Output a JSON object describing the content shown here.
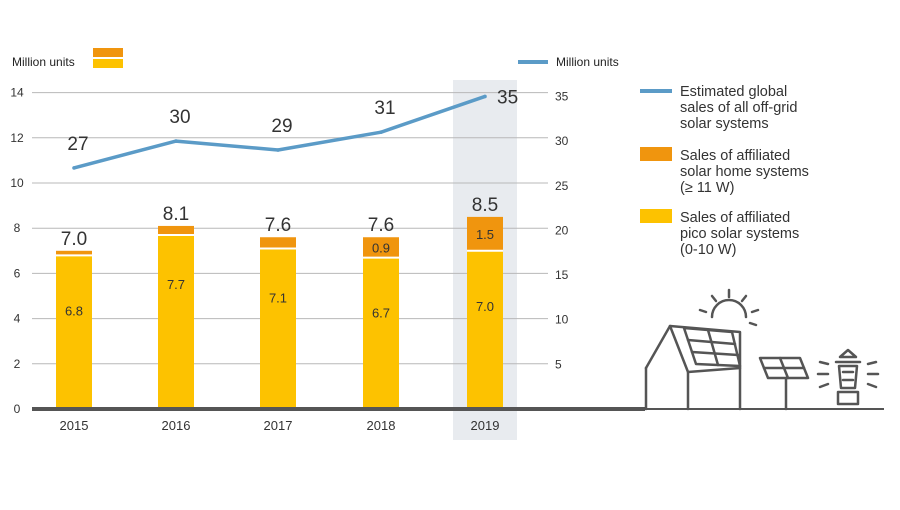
{
  "colors": {
    "pico": "#FDC200",
    "shs": "#F0950E",
    "line": "#5B9BC7",
    "highlight": "#E8EBEF",
    "axis": "#555555",
    "icon": "#555555"
  },
  "chart_data": {
    "type": "bar",
    "stacked": true,
    "categories": [
      "2015",
      "2016",
      "2017",
      "2018",
      "2019"
    ],
    "highlight_category": "2019",
    "left_axis": {
      "label": "Million units",
      "range": [
        0,
        14
      ],
      "ticks": [
        "0",
        "2",
        "4",
        "6",
        "8",
        "10",
        "12",
        "14"
      ]
    },
    "right_axis": {
      "label": "Million units",
      "range": [
        0,
        35
      ],
      "ticks": [
        "5",
        "10",
        "15",
        "20",
        "25",
        "30",
        "35"
      ]
    },
    "series": [
      {
        "name": "Sales of affiliated pico solar systems (0-10 W)",
        "type": "bar",
        "values": [
          6.8,
          7.7,
          7.1,
          6.7,
          7.0
        ],
        "labels": [
          "6.8",
          "7.7",
          "7.1",
          "6.7",
          "7.0"
        ]
      },
      {
        "name": "Sales of affiliated solar home systems (≥ 11 W)",
        "type": "bar",
        "values": [
          0.2,
          0.4,
          0.5,
          0.9,
          1.5
        ],
        "labels": [
          "",
          "",
          "",
          "0.9",
          "1.5"
        ]
      },
      {
        "name": "Estimated global sales of all off-grid solar systems",
        "type": "line",
        "axis": "right",
        "values": [
          27,
          30,
          29,
          31,
          35
        ],
        "labels": [
          "27",
          "30",
          "29",
          "31",
          "35"
        ]
      }
    ],
    "totals": [
      "7.0",
      "8.1",
      "7.6",
      "7.6",
      "8.5"
    ],
    "legend": [
      {
        "key": "line",
        "lines": [
          "Estimated global",
          "sales of all off-grid",
          "solar systems"
        ]
      },
      {
        "key": "shs",
        "lines": [
          "Sales of affiliated",
          "solar home systems",
          "(≥ 11 W)"
        ]
      },
      {
        "key": "pico",
        "lines": [
          "Sales of affiliated",
          "pico solar systems",
          "(0-10 W)"
        ]
      }
    ],
    "grid": true,
    "legend_position": "right"
  }
}
